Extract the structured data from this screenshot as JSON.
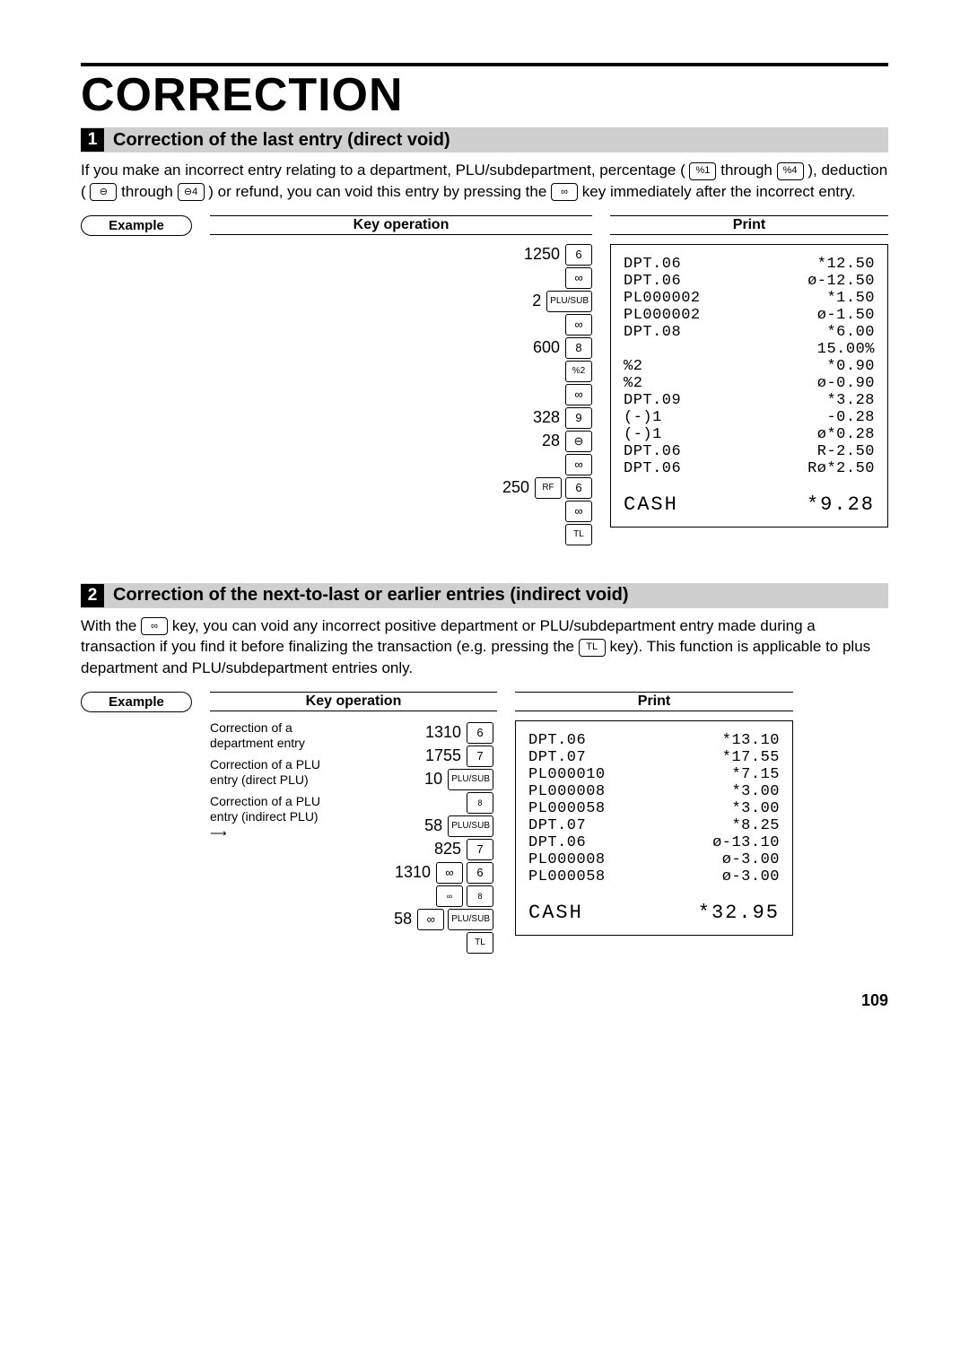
{
  "page": {
    "title": "CORRECTION",
    "pageNumber": "109"
  },
  "section1": {
    "num": "1",
    "heading": "Correction of the last entry (direct void)",
    "paraParts": {
      "p1": "If you make an incorrect entry relating to a department, PLU/subdepartment, percentage (",
      "k1": "%1",
      "p2": " through ",
      "k2": "%4",
      "p3": "), deduction (",
      "k3": "⊖",
      "p4": " through ",
      "k4": "⊖4",
      "p5": ") or refund, you can void this entry by pressing the ",
      "k5": "∞",
      "p6": " key immediately after the incorrect entry."
    },
    "exampleLabel": "Example",
    "keyOpHead": "Key operation",
    "printHead": "Print",
    "keyops": [
      {
        "num": "1250",
        "keys": [
          "6"
        ]
      },
      {
        "num": "",
        "keys": [
          "∞"
        ]
      },
      {
        "num": "2",
        "keys": [
          "PLU/SUB"
        ]
      },
      {
        "num": "",
        "keys": [
          "∞"
        ]
      },
      {
        "num": "600",
        "keys": [
          "8"
        ]
      },
      {
        "num": "",
        "keys": [
          "%2"
        ]
      },
      {
        "num": "",
        "keys": [
          "∞"
        ]
      },
      {
        "num": "328",
        "keys": [
          "9"
        ]
      },
      {
        "num": "28",
        "keys": [
          "⊖"
        ]
      },
      {
        "num": "",
        "keys": [
          "∞"
        ]
      },
      {
        "num": "250",
        "keys": [
          "RF",
          "6"
        ]
      },
      {
        "num": "",
        "keys": [
          "∞"
        ]
      },
      {
        "num": "",
        "keys": [
          "TL"
        ]
      }
    ],
    "receipt": [
      {
        "l": "DPT.06",
        "r": "*12.50"
      },
      {
        "l": "DPT.06",
        "r": "ø-12.50"
      },
      {
        "l": "PL000002",
        "r": "*1.50"
      },
      {
        "l": "PL000002",
        "r": "ø-1.50"
      },
      {
        "l": "DPT.08",
        "r": "*6.00"
      },
      {
        "l": "",
        "r": "15.00%"
      },
      {
        "l": "%2",
        "r": "*0.90"
      },
      {
        "l": "%2",
        "r": "ø-0.90"
      },
      {
        "l": "DPT.09",
        "r": "*3.28"
      },
      {
        "l": "(-)1",
        "r": "-0.28"
      },
      {
        "l": "(-)1",
        "r": "ø*0.28"
      },
      {
        "l": "DPT.06",
        "r": "R-2.50"
      },
      {
        "l": "DPT.06",
        "r": "Rø*2.50"
      }
    ],
    "total": {
      "l": "CASH",
      "r": "*9.28"
    }
  },
  "section2": {
    "num": "2",
    "heading": "Correction of the next-to-last or earlier entries (indirect void)",
    "paraParts": {
      "p1": "With the ",
      "k1": "∞",
      "p2": " key, you can void any incorrect positive department or PLU/subdepartment entry made during a transaction if you find it before finalizing the transaction (e.g. pressing the ",
      "k2": "TL",
      "p3": " key).  This function is applicable to plus department and PLU/subdepartment entries only."
    },
    "exampleLabel": "Example",
    "keyOpHead": "Key operation",
    "printHead": "Print",
    "annot": {
      "a1": "Correction of a department entry",
      "a2": "Correction of a PLU entry (direct PLU)",
      "a3": "Correction of a PLU entry (indirect PLU)"
    },
    "keyops": [
      {
        "num": "1310",
        "keys": [
          "6"
        ]
      },
      {
        "num": "1755",
        "keys": [
          "7"
        ]
      },
      {
        "num": "10",
        "keys": [
          "PLU/SUB"
        ]
      },
      {
        "num": "",
        "keys": [
          "8"
        ],
        "small": true
      },
      {
        "num": "58",
        "keys": [
          "PLU/SUB"
        ]
      },
      {
        "num": "825",
        "keys": [
          "7"
        ]
      },
      {
        "num": "1310",
        "keys": [
          "∞",
          "6"
        ]
      },
      {
        "num": "",
        "keys": [
          "∞",
          "8"
        ],
        "small": true
      },
      {
        "num": "58",
        "keys": [
          "∞",
          "PLU/SUB"
        ]
      },
      {
        "num": "",
        "keys": [
          "TL"
        ]
      }
    ],
    "receipt": [
      {
        "l": "DPT.06",
        "r": "*13.10"
      },
      {
        "l": "DPT.07",
        "r": "*17.55"
      },
      {
        "l": "PL000010",
        "r": "*7.15"
      },
      {
        "l": "PL000008",
        "r": "*3.00"
      },
      {
        "l": "PL000058",
        "r": "*3.00"
      },
      {
        "l": "DPT.07",
        "r": "*8.25"
      },
      {
        "l": "DPT.06",
        "r": "ø-13.10"
      },
      {
        "l": "PL000008",
        "r": "ø-3.00"
      },
      {
        "l": "PL000058",
        "r": "ø-3.00"
      }
    ],
    "total": {
      "l": "CASH",
      "r": "*32.95"
    }
  }
}
